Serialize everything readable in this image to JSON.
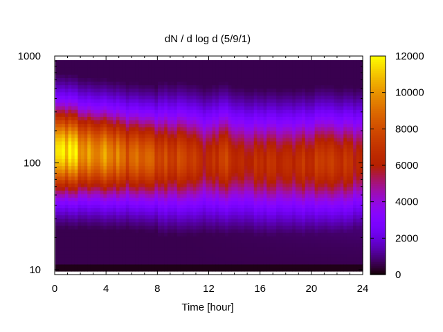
{
  "chart_data": {
    "type": "heatmap",
    "title": "dN / d log d (5/9/1)",
    "xlabel": "Time [hour]",
    "ylabel": "",
    "xlim": [
      0,
      24
    ],
    "ylim": [
      9,
      1000
    ],
    "y_scale": "log",
    "x_ticks": [
      0,
      4,
      8,
      12,
      16,
      20,
      24
    ],
    "x_tick_labels": [
      "0",
      "4",
      "8",
      "12",
      "16",
      "20",
      "24"
    ],
    "y_ticks": [
      10,
      100,
      1000
    ],
    "y_tick_labels": [
      "10",
      "100",
      "1000"
    ],
    "colorbar": {
      "range": [
        0,
        12000
      ],
      "ticks": [
        0,
        2000,
        4000,
        6000,
        8000,
        10000,
        12000
      ],
      "tick_labels": [
        "0",
        "2000",
        "4000",
        "6000",
        "8000",
        "10000",
        "12000"
      ],
      "colormap": "gnuplot-pm3d-black-purple-red-yellow"
    },
    "heatmap_summary": {
      "note": "approximate peak concentration per time, read from colors",
      "time": [
        0,
        1,
        2,
        4,
        6,
        8,
        10,
        12,
        13,
        14,
        16,
        18,
        20,
        21,
        22,
        24
      ],
      "peak_diameter": [
        130,
        130,
        125,
        120,
        115,
        110,
        110,
        105,
        110,
        105,
        100,
        100,
        100,
        105,
        100,
        105
      ],
      "peak_value": [
        11000,
        11500,
        10500,
        9500,
        9000,
        8000,
        7500,
        6500,
        7500,
        6500,
        6500,
        6800,
        6500,
        8000,
        6800,
        6500
      ]
    }
  }
}
